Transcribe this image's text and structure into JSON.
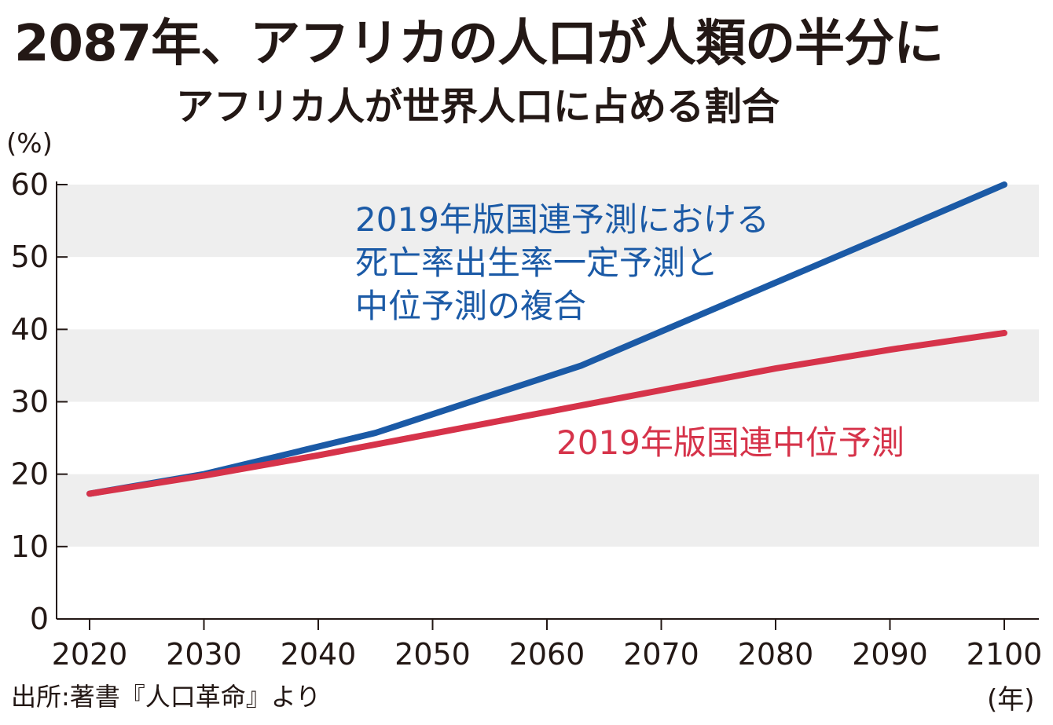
{
  "header": {
    "title": "2087年、アフリカの人口が人類の半分に",
    "subtitle": "アフリカ人が世界人口に占める割合"
  },
  "source": "出所:著書『人口革命』より",
  "chart_data": {
    "type": "line",
    "title": "アフリカ人が世界人口に占める割合",
    "ylabel": "(%)",
    "xlabel": "(年)",
    "xlim": [
      2020,
      2100
    ],
    "ylim": [
      0,
      60
    ],
    "x_ticks": [
      2020,
      2030,
      2040,
      2050,
      2060,
      2070,
      2080,
      2090,
      2100
    ],
    "y_ticks": [
      0,
      10,
      20,
      30,
      40,
      50,
      60
    ],
    "grid": "alternating horizontal bands",
    "series": [
      {
        "name": "2019年版国連予測における死亡率出生率一定予測と中位予測の複合",
        "label_lines": [
          "2019年版国連予測における",
          "死亡率出生率一定予測と",
          "中位予測の複合"
        ],
        "color": "#1b5aa6",
        "x": [
          2020,
          2030,
          2045,
          2063,
          2090,
          2100
        ],
        "y": [
          17.3,
          20.0,
          25.7,
          35.0,
          53.2,
          60.0
        ]
      },
      {
        "name": "2019年版国連中位予測",
        "label_lines": [
          "2019年版国連中位予測"
        ],
        "color": "#d6334a",
        "x": [
          2020,
          2030,
          2040,
          2050,
          2060,
          2070,
          2080,
          2090,
          2100
        ],
        "y": [
          17.3,
          19.8,
          22.6,
          25.6,
          28.6,
          31.6,
          34.6,
          37.2,
          39.5
        ]
      }
    ]
  }
}
